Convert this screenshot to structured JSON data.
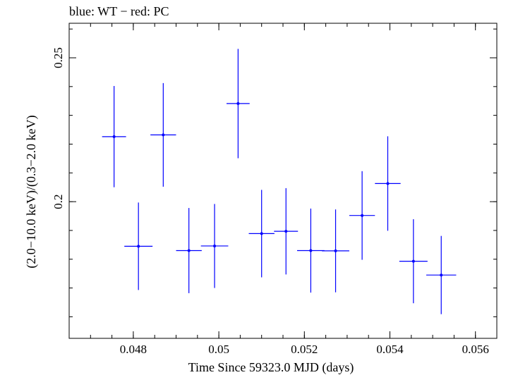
{
  "chart_data": {
    "type": "scatter",
    "title": "blue: WT − red: PC",
    "xlabel": "Time Since 59323.0 MJD (days)",
    "ylabel": "(2.0−10.0 keV)/(0.3−2.0 keV)",
    "xlim": [
      0.0465,
      0.0565
    ],
    "ylim": [
      0.1525,
      0.262
    ],
    "x_ticks": [
      {
        "value": 0.048,
        "label": "0.048"
      },
      {
        "value": 0.05,
        "label": "0.05"
      },
      {
        "value": 0.052,
        "label": "0.052"
      },
      {
        "value": 0.054,
        "label": "0.054"
      },
      {
        "value": 0.056,
        "label": "0.056"
      }
    ],
    "y_ticks": [
      {
        "value": 0.2,
        "label": "0.2"
      },
      {
        "value": 0.25,
        "label": "0.25"
      }
    ],
    "x_minor_step": 0.0005,
    "y_minor_step": 0.01,
    "series": [
      {
        "color": "#0000ff",
        "points": [
          {
            "x": 0.04755,
            "y": 0.2226,
            "xerr": 0.00028,
            "yerr": 0.0176
          },
          {
            "x": 0.04812,
            "y": 0.1845,
            "xerr": 0.00033,
            "yerr": 0.0152
          },
          {
            "x": 0.0487,
            "y": 0.2232,
            "xerr": 0.0003,
            "yerr": 0.018
          },
          {
            "x": 0.0493,
            "y": 0.183,
            "xerr": 0.0003,
            "yerr": 0.0148
          },
          {
            "x": 0.0499,
            "y": 0.1846,
            "xerr": 0.00032,
            "yerr": 0.0146
          },
          {
            "x": 0.05045,
            "y": 0.2341,
            "xerr": 0.00027,
            "yerr": 0.019
          },
          {
            "x": 0.051,
            "y": 0.1889,
            "xerr": 0.0003,
            "yerr": 0.0152
          },
          {
            "x": 0.05157,
            "y": 0.1897,
            "xerr": 0.00028,
            "yerr": 0.015
          },
          {
            "x": 0.05215,
            "y": 0.183,
            "xerr": 0.00032,
            "yerr": 0.0146
          },
          {
            "x": 0.05273,
            "y": 0.1829,
            "xerr": 0.00032,
            "yerr": 0.0144
          },
          {
            "x": 0.05335,
            "y": 0.1952,
            "xerr": 0.0003,
            "yerr": 0.0154
          },
          {
            "x": 0.05395,
            "y": 0.2063,
            "xerr": 0.0003,
            "yerr": 0.0164
          },
          {
            "x": 0.05455,
            "y": 0.1793,
            "xerr": 0.00033,
            "yerr": 0.0146
          },
          {
            "x": 0.0552,
            "y": 0.1745,
            "xerr": 0.00035,
            "yerr": 0.0136
          }
        ]
      }
    ],
    "grid": false,
    "legend": "none"
  }
}
